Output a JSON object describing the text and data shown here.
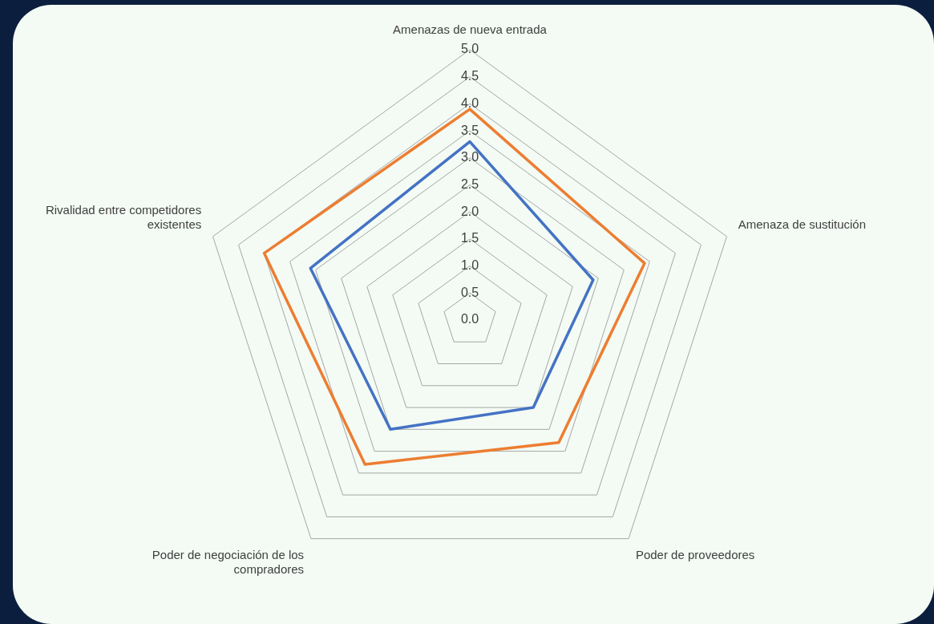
{
  "chart_data": {
    "type": "radar",
    "categories": [
      "Amenazas de nueva entrada",
      "Amenaza de sustitución",
      "Poder de proveedores",
      "Poder de negociación de los compradores",
      "Rivalidad entre competidores existentes"
    ],
    "series": [
      {
        "color": "#ed7d31",
        "values": [
          3.9,
          3.4,
          2.8,
          3.3,
          4.0
        ]
      },
      {
        "color": "#4472c4",
        "values": [
          3.3,
          2.4,
          2.0,
          2.5,
          3.1
        ]
      }
    ],
    "ylim": [
      0,
      5
    ],
    "yticks": [
      {
        "value": 0,
        "label": "0.0"
      },
      {
        "value": 0.5,
        "label": "0.5"
      },
      {
        "value": 1,
        "label": "1.0"
      },
      {
        "value": 1.5,
        "label": "1.5"
      },
      {
        "value": 2,
        "label": "2.0"
      },
      {
        "value": 2.5,
        "label": "2.5"
      },
      {
        "value": 3,
        "label": "3.0"
      },
      {
        "value": 3.5,
        "label": "3.5"
      },
      {
        "value": 4,
        "label": "4.0"
      },
      {
        "value": 4.5,
        "label": "4.5"
      },
      {
        "value": 5,
        "label": "5.0"
      }
    ],
    "grid": true,
    "legend": false,
    "marker": "none",
    "line_style": "solid"
  }
}
